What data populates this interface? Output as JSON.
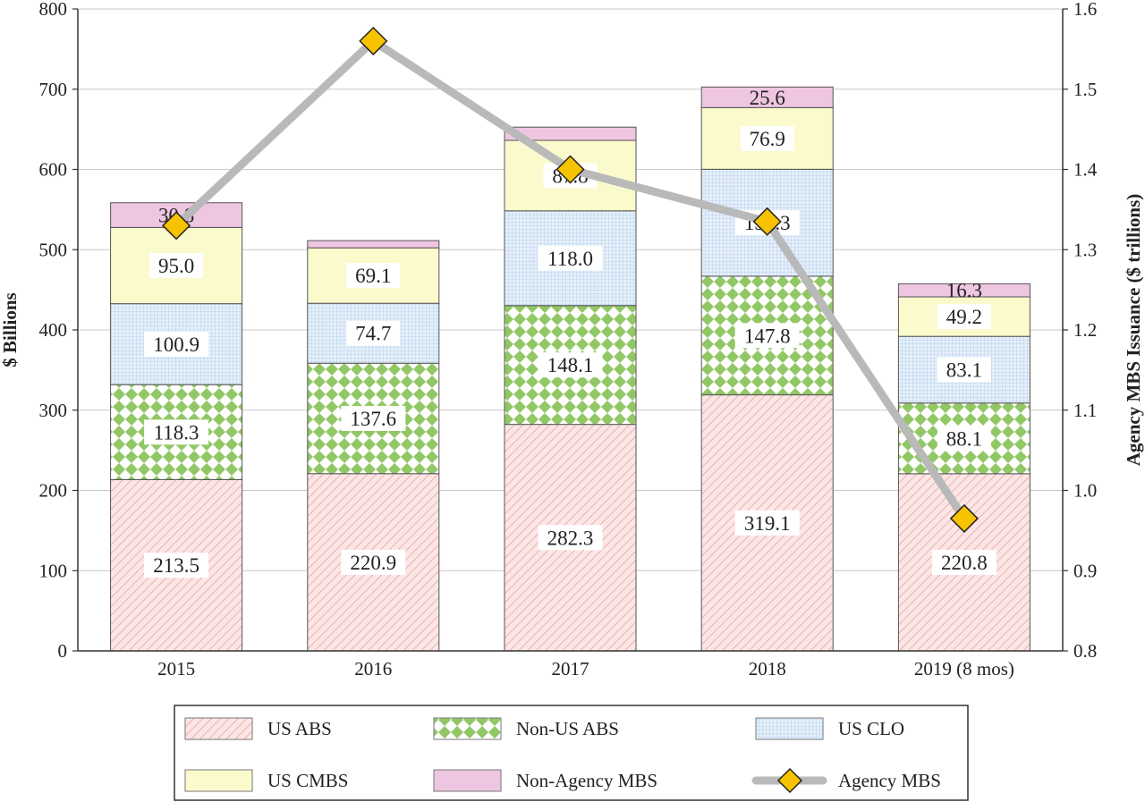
{
  "chart_data": {
    "type": "bar",
    "stacked": true,
    "categories": [
      "2015",
      "2016",
      "2017",
      "2018",
      "2019 (8 mos)"
    ],
    "ylabel": "$ Billions",
    "ylim": [
      0,
      800
    ],
    "yticks": [
      0,
      100,
      200,
      300,
      400,
      500,
      600,
      700,
      800
    ],
    "y2label": "Agency MBS Issuance ($ trillions)",
    "y2lim": [
      0.8,
      1.6
    ],
    "y2ticks": [
      "0.8",
      "0.9",
      "1.0",
      "1.1",
      "1.2",
      "1.3",
      "1.4",
      "1.5",
      "1.6"
    ],
    "grid": "horizontal",
    "legend_position": "bottom",
    "series": [
      {
        "name": "US ABS",
        "values": [
          213.5,
          220.9,
          282.3,
          319.1,
          220.8
        ],
        "labels": [
          "213.5",
          "220.9",
          "282.3",
          "319.1",
          "220.8"
        ],
        "fill": "#fbe6e6",
        "hatch": "#f0b3b3",
        "pattern": "diagonal"
      },
      {
        "name": "Non-US ABS",
        "values": [
          118.3,
          137.6,
          148.1,
          147.8,
          88.1
        ],
        "labels": [
          "118.3",
          "137.6",
          "148.1",
          "147.8",
          "88.1"
        ],
        "fill": "#ffffff",
        "hatch": "#96c96b",
        "pattern": "diamond"
      },
      {
        "name": "US CLO",
        "values": [
          100.9,
          74.7,
          118.0,
          133.3,
          83.1
        ],
        "labels": [
          "100.9",
          "74.7",
          "118.0",
          "133.3",
          "83.1"
        ],
        "fill": "#e3eef9",
        "hatch": "#a9c6e6",
        "pattern": "grid"
      },
      {
        "name": "US CMBS",
        "values": [
          95.0,
          69.1,
          87.8,
          76.9,
          49.2
        ],
        "labels": [
          "95.0",
          "69.1",
          "87.8",
          "76.9",
          "49.2"
        ],
        "fill": "#fafacd",
        "hatch": "#fafacd",
        "pattern": "solid"
      },
      {
        "name": "Non-Agency MBS",
        "values": [
          30.8,
          9.0,
          16.5,
          25.6,
          16.3
        ],
        "labels": [
          "30.8",
          "",
          "",
          "25.6",
          "16.3"
        ],
        "fill": "#efc6e1",
        "hatch": "#efc6e1",
        "pattern": "solid"
      }
    ],
    "line_series": {
      "name": "Agency MBS",
      "axis": "right",
      "values": [
        1.33,
        1.56,
        1.4,
        1.335,
        0.965
      ],
      "line_color": "#b9b9b9",
      "marker_color": "#f7c200"
    }
  }
}
